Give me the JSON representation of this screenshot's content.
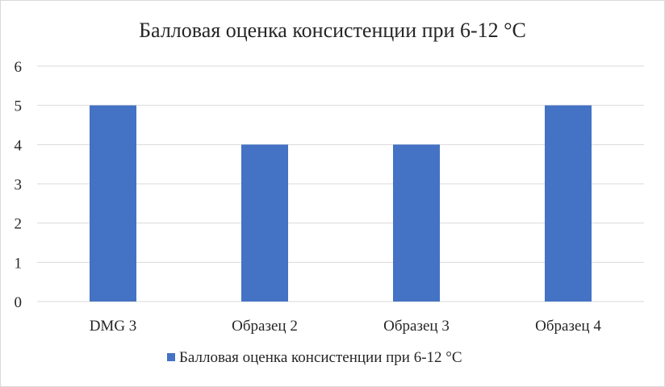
{
  "chart_data": {
    "type": "bar",
    "title": "Балловая оценка консистенции при 6-12 °С",
    "xlabel": "",
    "ylabel": "",
    "categories": [
      "DMG 3",
      "Образец 2",
      "Образец 3",
      "Образец 4"
    ],
    "series": [
      {
        "name": "Балловая оценка консистенции при 6-12 °С",
        "values": [
          5,
          4,
          4,
          5
        ],
        "color": "#4472c4"
      }
    ],
    "ylim": [
      0,
      6
    ],
    "yticks": [
      "0",
      "1",
      "2",
      "3",
      "4",
      "5",
      "6"
    ],
    "grid": true,
    "legend_position": "bottom"
  }
}
